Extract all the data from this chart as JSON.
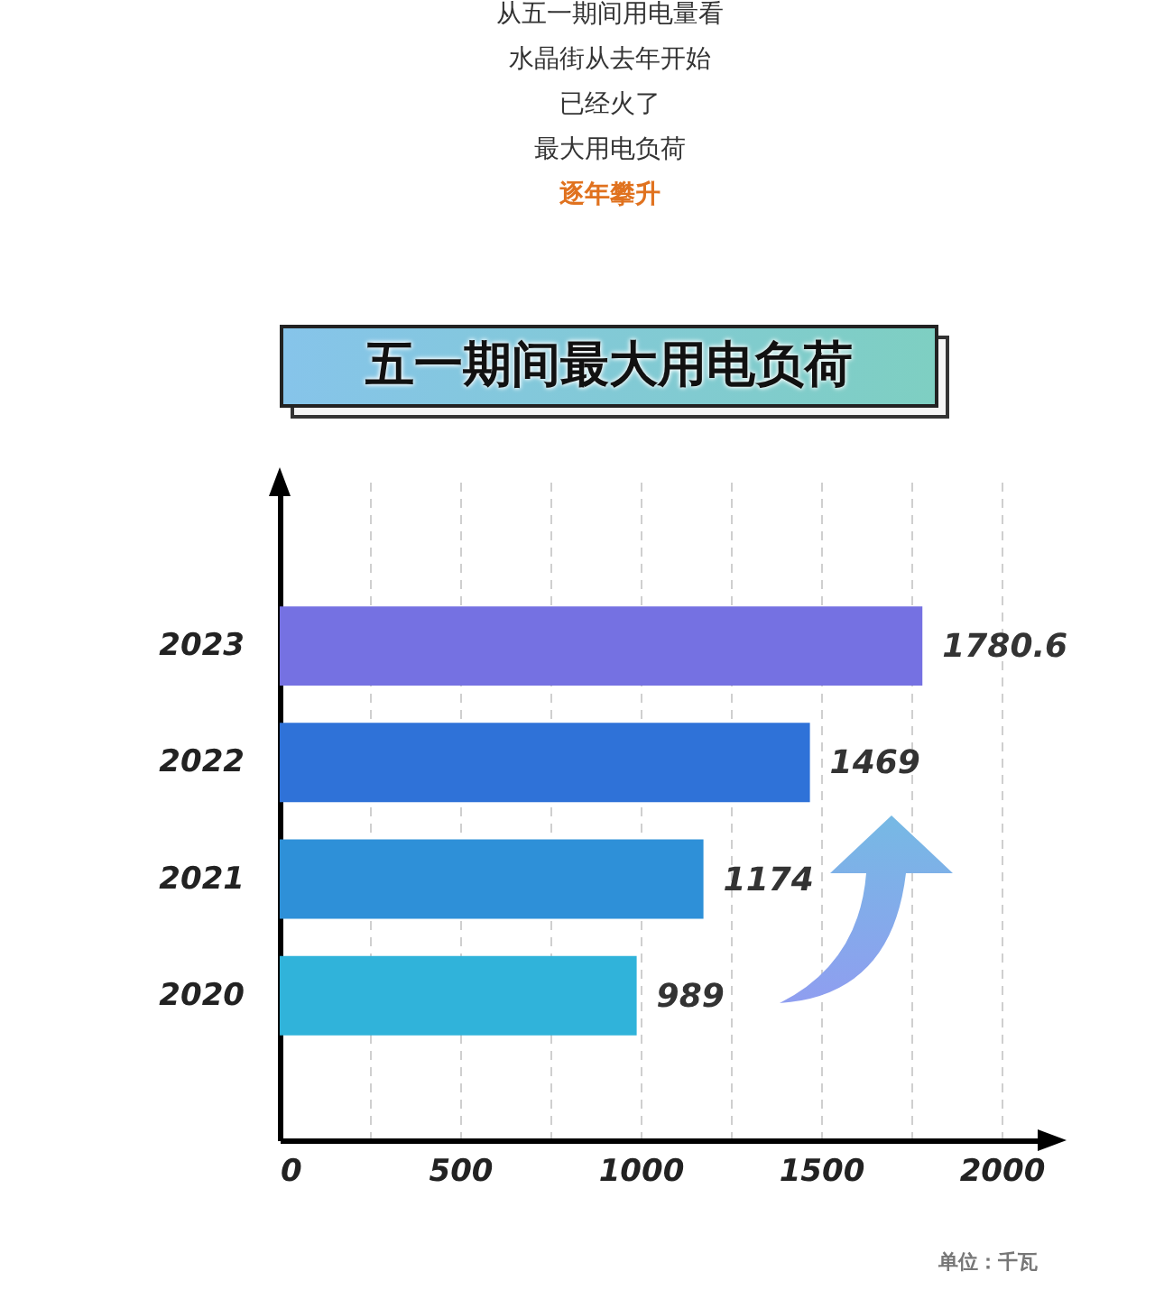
{
  "chart_data": {
    "type": "bar",
    "orientation": "horizontal",
    "title": "五一期间最大用电负荷",
    "categories": [
      "2023",
      "2022",
      "2021",
      "2020"
    ],
    "values": [
      1780.6,
      1469,
      1174,
      989
    ],
    "colors": [
      "#7571e2",
      "#2f72d8",
      "#2e90d8",
      "#30b3da"
    ],
    "xlim": [
      0,
      2150
    ],
    "xticks": [
      0,
      {
        "value": 250,
        "label": null
      },
      500,
      {
        "value": 750,
        "label": null
      },
      1000,
      {
        "value": 1250,
        "label": null
      },
      1500,
      {
        "value": 1750,
        "label": null
      },
      2000
    ],
    "grid": "x",
    "data_labels": true,
    "annotations": [
      "从五一期间用电量看",
      "水晶街从去年开始",
      "已经火了",
      "最大用电负荷",
      "逐年攀升",
      "单位：千瓦"
    ]
  }
}
